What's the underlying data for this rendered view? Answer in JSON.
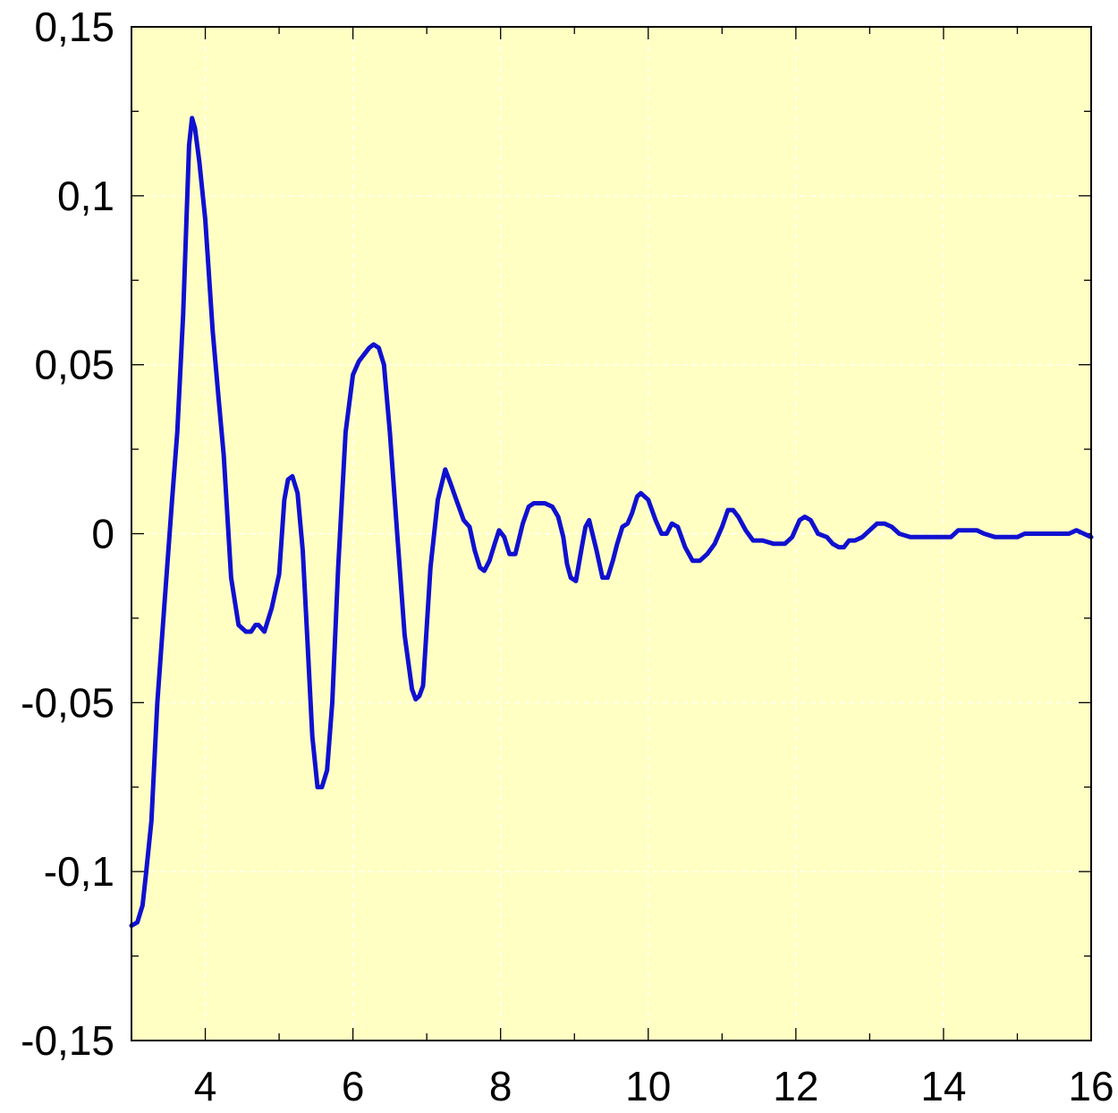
{
  "chart_data": {
    "type": "line",
    "title": "",
    "xlabel": "",
    "ylabel": "",
    "xlim": [
      3,
      16
    ],
    "ylim": [
      -0.15,
      0.15
    ],
    "x_ticks": [
      4,
      6,
      8,
      10,
      12,
      14,
      16
    ],
    "x_tick_labels": [
      "4",
      "6",
      "8",
      "10",
      "12",
      "14",
      "16"
    ],
    "y_ticks": [
      0.15,
      0.1,
      0.05,
      0,
      -0.05,
      -0.1,
      -0.15
    ],
    "y_tick_labels": [
      "0,15",
      "0,1",
      "0,05",
      "0",
      "-0,05",
      "-0,1",
      "-0,15"
    ],
    "grid": true,
    "colors": {
      "plot_background": "#ffffc4",
      "line": "#1010d0",
      "grid": "#ffffff"
    },
    "series": [
      {
        "x": [
          3.0,
          3.08,
          3.15,
          3.2,
          3.27,
          3.35,
          3.45,
          3.55,
          3.62,
          3.7,
          3.78,
          3.82,
          3.86,
          3.92,
          4.0,
          4.1,
          4.18,
          4.25,
          4.35,
          4.45,
          4.55,
          4.62,
          4.68,
          4.72,
          4.8,
          4.9,
          5.0,
          5.07,
          5.12,
          5.18,
          5.25,
          5.32,
          5.38,
          5.45,
          5.52,
          5.58,
          5.65,
          5.72,
          5.8,
          5.9,
          6.0,
          6.08,
          6.15,
          6.22,
          6.28,
          6.35,
          6.42,
          6.5,
          6.6,
          6.7,
          6.8,
          6.85,
          6.9,
          6.95,
          7.05,
          7.15,
          7.25,
          7.32,
          7.4,
          7.5,
          7.58,
          7.65,
          7.72,
          7.78,
          7.85,
          7.92,
          7.98,
          8.05,
          8.12,
          8.2,
          8.3,
          8.38,
          8.45,
          8.52,
          8.6,
          8.7,
          8.78,
          8.85,
          8.9,
          8.95,
          9.02,
          9.1,
          9.15,
          9.2,
          9.3,
          9.38,
          9.45,
          9.52,
          9.58,
          9.65,
          9.72,
          9.78,
          9.85,
          9.9,
          10.0,
          10.1,
          10.18,
          10.25,
          10.32,
          10.4,
          10.5,
          10.6,
          10.7,
          10.8,
          10.9,
          11.0,
          11.08,
          11.15,
          11.22,
          11.32,
          11.42,
          11.55,
          11.7,
          11.85,
          11.95,
          12.05,
          12.12,
          12.2,
          12.3,
          12.42,
          12.5,
          12.58,
          12.65,
          12.72,
          12.8,
          12.9,
          13.0,
          13.1,
          13.2,
          13.3,
          13.4,
          13.55,
          13.7,
          13.85,
          14.0,
          14.1,
          14.2,
          14.3,
          14.45,
          14.55,
          14.7,
          14.85,
          15.0,
          15.1,
          15.2,
          15.35,
          15.5,
          15.6,
          15.7,
          15.8,
          15.9,
          16.0
        ],
        "y": [
          -0.116,
          -0.115,
          -0.11,
          -0.1,
          -0.085,
          -0.05,
          -0.02,
          0.01,
          0.03,
          0.065,
          0.115,
          0.123,
          0.12,
          0.11,
          0.093,
          0.06,
          0.04,
          0.023,
          -0.013,
          -0.027,
          -0.029,
          -0.029,
          -0.027,
          -0.027,
          -0.029,
          -0.022,
          -0.012,
          0.01,
          0.016,
          0.017,
          0.012,
          -0.005,
          -0.03,
          -0.06,
          -0.075,
          -0.075,
          -0.07,
          -0.05,
          -0.01,
          0.03,
          0.047,
          0.051,
          0.053,
          0.055,
          0.056,
          0.055,
          0.05,
          0.03,
          0.0,
          -0.03,
          -0.046,
          -0.049,
          -0.048,
          -0.045,
          -0.01,
          0.01,
          0.019,
          0.015,
          0.01,
          0.004,
          0.002,
          -0.005,
          -0.01,
          -0.011,
          -0.008,
          -0.003,
          0.001,
          -0.001,
          -0.006,
          -0.006,
          0.003,
          0.008,
          0.009,
          0.009,
          0.009,
          0.008,
          0.005,
          -0.001,
          -0.009,
          -0.013,
          -0.014,
          -0.004,
          0.002,
          0.004,
          -0.005,
          -0.013,
          -0.013,
          -0.008,
          -0.003,
          0.002,
          0.003,
          0.006,
          0.011,
          0.012,
          0.01,
          0.004,
          0.0,
          0.0,
          0.003,
          0.002,
          -0.004,
          -0.008,
          -0.008,
          -0.006,
          -0.003,
          0.002,
          0.007,
          0.007,
          0.005,
          0.001,
          -0.002,
          -0.002,
          -0.003,
          -0.003,
          -0.001,
          0.004,
          0.005,
          0.004,
          0.0,
          -0.001,
          -0.003,
          -0.004,
          -0.004,
          -0.002,
          -0.002,
          -0.001,
          0.001,
          0.003,
          0.003,
          0.002,
          0.0,
          -0.001,
          -0.001,
          -0.001,
          -0.001,
          -0.001,
          0.001,
          0.001,
          0.001,
          0.0,
          -0.001,
          -0.001,
          -0.001,
          0.0,
          0.0,
          0.0,
          0.0,
          0.0,
          0.0,
          0.001,
          0.0,
          -0.001
        ]
      }
    ]
  }
}
